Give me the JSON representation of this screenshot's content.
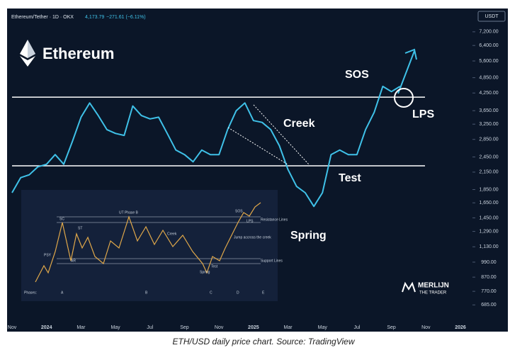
{
  "chart_data": {
    "type": "line",
    "symbol": "Ethereum/Tether · 1D · OKX",
    "last_price": "4,173.79",
    "change": "−271.61 (−6.11%)",
    "currency": "USDT",
    "title": "Ethereum",
    "caption": "ETH/USD daily price chart. Source: TradingView",
    "log_scale": true,
    "grid": false,
    "categories": [
      "Nov",
      null,
      null,
      null,
      "2024",
      null,
      null,
      null,
      "Mar",
      null,
      null,
      null,
      "May",
      null,
      null,
      null,
      "Jul",
      null,
      null,
      null,
      "Sep",
      null,
      null,
      null,
      "Nov",
      null,
      null,
      null,
      "2025",
      null,
      null,
      null,
      "Mar",
      null,
      null,
      null,
      "May",
      null,
      null,
      null,
      "Jul",
      null,
      null,
      null,
      "Sep",
      null,
      null,
      null,
      "Nov",
      null,
      null,
      null,
      "2026"
    ],
    "series": [
      {
        "name": "ETH/USDT",
        "color": "#3fc1e8",
        "values": [
          1800,
          2050,
          2100,
          2250,
          2300,
          2500,
          2300,
          2800,
          3450,
          3900,
          3500,
          3100,
          3000,
          2950,
          3800,
          3500,
          3400,
          3450,
          3000,
          2600,
          2500,
          2350,
          2600,
          2500,
          2500,
          3100,
          3650,
          3900,
          3350,
          3300,
          3100,
          2700,
          2200,
          1900,
          1800,
          1600,
          1800,
          2500,
          2600,
          2500,
          2500,
          3100,
          3600,
          4500,
          4300,
          4500,
          null,
          null,
          null,
          null,
          null,
          null,
          null
        ]
      }
    ],
    "ylim": [
      600,
      8800
    ],
    "yticks": [
      {
        "value": 7200,
        "label": "7,200.00"
      },
      {
        "value": 6400,
        "label": "6,400.00"
      },
      {
        "value": 5600,
        "label": "5,600.00"
      },
      {
        "value": 4850,
        "label": "4,850.00"
      },
      {
        "value": 4250,
        "label": "4,250.00"
      },
      {
        "value": 3650,
        "label": "3,650.00"
      },
      {
        "value": 3250,
        "label": "3,250.00"
      },
      {
        "value": 2850,
        "label": "2,850.00"
      },
      {
        "value": 2450,
        "label": "2,450.00"
      },
      {
        "value": 2150,
        "label": "2,150.00"
      },
      {
        "value": 1850,
        "label": "1,850.00"
      },
      {
        "value": 1650,
        "label": "1,650.00"
      },
      {
        "value": 1450,
        "label": "1,450.00"
      },
      {
        "value": 1290,
        "label": "1,290.00"
      },
      {
        "value": 1130,
        "label": "1,130.00"
      },
      {
        "value": 990,
        "label": "990.00"
      },
      {
        "value": 870,
        "label": "870.00"
      },
      {
        "value": 770,
        "label": "770.00"
      },
      {
        "value": 685,
        "label": "685.00"
      }
    ],
    "levels": [
      4100,
      2270
    ],
    "annotations": [
      "SOS",
      "Creek",
      "Test",
      "Spring",
      "LPS"
    ],
    "brand": [
      "MERLIJN",
      "THE TRADER"
    ],
    "inset": {
      "labels": [
        "PSY",
        "SC",
        "AR",
        "ST",
        "UT Phase B",
        "Creek",
        "Spring",
        "Test",
        "SOS",
        "LPS",
        "Jump accross the creek",
        "Resistance Lines",
        "Support Lines"
      ],
      "phases": [
        "Phases:",
        "A",
        "B",
        "C",
        "D",
        "E"
      ]
    }
  }
}
